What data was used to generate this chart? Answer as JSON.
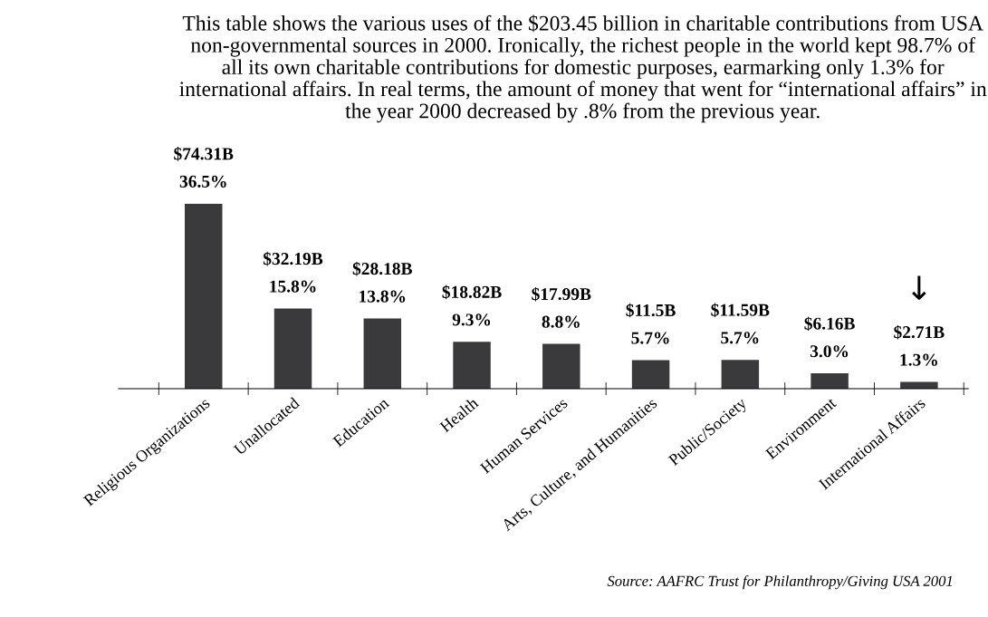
{
  "chart_data": {
    "type": "bar",
    "title": "This table shows the various uses of the $203.45 billion in charitable contributions from USA non-governmental sources in 2000. Ironically, the richest people in the world kept 98.7% of all its own charitable contributions for domestic purposes, earmarking only 1.3% for international affairs. In real terms, the amount of money that went for “international affairs” in the year 2000 decreased by .8% from the previous year.",
    "categories": [
      "Religious Organizations",
      "Unallocated",
      "Education",
      "Health",
      "Human Services",
      "Arts, Culture, and Humanities",
      "Public/Society",
      "Environment",
      "International Affairs"
    ],
    "values": [
      74.31,
      32.19,
      28.18,
      18.82,
      17.99,
      11.5,
      11.59,
      6.16,
      2.71
    ],
    "value_labels": [
      "$74.31B",
      "$32.19B",
      "$28.18B",
      "$18.82B",
      "$17.99B",
      "$11.5B",
      "$11.59B",
      "$6.16B",
      "$2.71B"
    ],
    "color": "#3a3a3c",
    "annotations": [
      {
        "text": "36.5%",
        "x": "Religious Organizations",
        "y": 74.31
      },
      {
        "text": "15.8%",
        "x": "Unallocated",
        "y": 32.19
      },
      {
        "text": "13.8%",
        "x": "Education",
        "y": 28.18
      },
      {
        "text": "9.3%",
        "x": "Health",
        "y": 18.82
      },
      {
        "text": "8.8%",
        "x": "Human Services",
        "y": 17.99
      },
      {
        "text": "5.7%",
        "x": "Arts, Culture, and Humanities",
        "y": 11.5
      },
      {
        "text": "5.7%",
        "x": "Public/Society",
        "y": 11.59
      },
      {
        "text": "3.0%",
        "x": "Environment",
        "y": 6.16
      },
      {
        "text": "1.3%",
        "x": "International Affairs",
        "y": 2.71
      },
      {
        "text": "↓",
        "x": "International Affairs",
        "y": 2.71
      },
      "Source: AAFRC Trust for Philanthropy/Giving USA 2001"
    ],
    "grid": false,
    "legend": false
  }
}
